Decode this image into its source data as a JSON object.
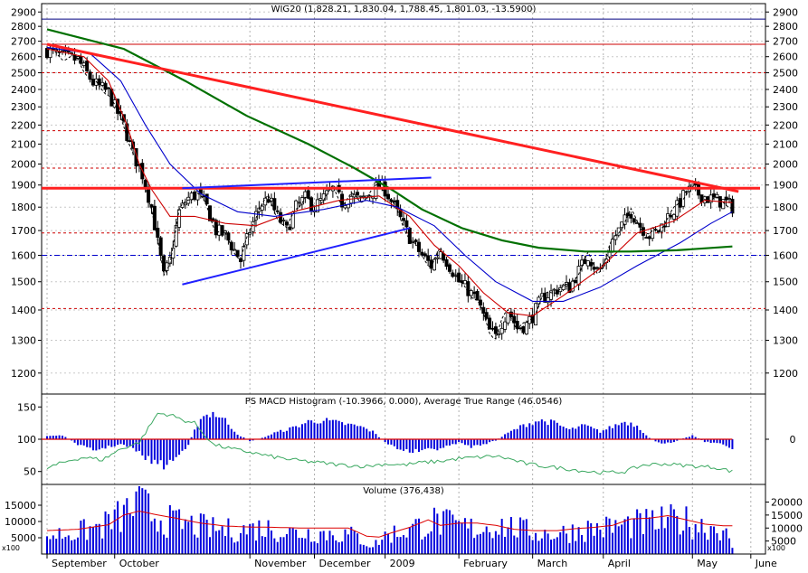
{
  "chart_data": [
    {
      "type": "candlestick",
      "title": "WIG20 (1,828.21, 1,830.04, 1,788.45, 1,801.03, -13.5900)",
      "y_ticks": [
        1200,
        1300,
        1400,
        1500,
        1600,
        1700,
        1800,
        1900,
        2000,
        2100,
        2200,
        2300,
        2400,
        2500,
        2600,
        2700,
        2800,
        2900
      ],
      "y_scale": "log",
      "ylim": [
        1140,
        2960
      ],
      "x_months": [
        "September",
        "October",
        "November",
        "December",
        "2009",
        "February",
        "March",
        "April",
        "May",
        "June"
      ],
      "month_starts_day": [
        0,
        22,
        66,
        87,
        110,
        134,
        158,
        181,
        210,
        229
      ],
      "total_days": 232,
      "close_path": [
        [
          0,
          2640
        ],
        [
          5,
          2600
        ],
        [
          10,
          2580
        ],
        [
          15,
          2440
        ],
        [
          20,
          2380
        ],
        [
          22,
          2300
        ],
        [
          25,
          2200
        ],
        [
          28,
          2050
        ],
        [
          31,
          1950
        ],
        [
          34,
          1800
        ],
        [
          36,
          1650
        ],
        [
          38,
          1520
        ],
        [
          40,
          1580
        ],
        [
          43,
          1780
        ],
        [
          46,
          1840
        ],
        [
          49,
          1860
        ],
        [
          52,
          1800
        ],
        [
          55,
          1700
        ],
        [
          58,
          1680
        ],
        [
          60,
          1640
        ],
        [
          63,
          1580
        ],
        [
          66,
          1700
        ],
        [
          69,
          1800
        ],
        [
          72,
          1840
        ],
        [
          75,
          1760
        ],
        [
          78,
          1700
        ],
        [
          81,
          1800
        ],
        [
          84,
          1840
        ],
        [
          87,
          1800
        ],
        [
          90,
          1840
        ],
        [
          93,
          1880
        ],
        [
          96,
          1820
        ],
        [
          99,
          1850
        ],
        [
          102,
          1830
        ],
        [
          105,
          1860
        ],
        [
          108,
          1900
        ],
        [
          110,
          1880
        ],
        [
          113,
          1800
        ],
        [
          116,
          1720
        ],
        [
          119,
          1650
        ],
        [
          122,
          1600
        ],
        [
          125,
          1560
        ],
        [
          128,
          1620
        ],
        [
          131,
          1560
        ],
        [
          134,
          1500
        ],
        [
          137,
          1470
        ],
        [
          140,
          1430
        ],
        [
          142,
          1380
        ],
        [
          144,
          1330
        ],
        [
          146,
          1310
        ],
        [
          148,
          1360
        ],
        [
          150,
          1400
        ],
        [
          153,
          1340
        ],
        [
          156,
          1350
        ],
        [
          158,
          1380
        ],
        [
          161,
          1440
        ],
        [
          164,
          1460
        ],
        [
          167,
          1480
        ],
        [
          170,
          1480
        ],
        [
          173,
          1540
        ],
        [
          176,
          1600
        ],
        [
          179,
          1540
        ],
        [
          181,
          1560
        ],
        [
          184,
          1660
        ],
        [
          187,
          1720
        ],
        [
          190,
          1780
        ],
        [
          193,
          1720
        ],
        [
          196,
          1680
        ],
        [
          199,
          1700
        ],
        [
          202,
          1760
        ],
        [
          205,
          1800
        ],
        [
          208,
          1870
        ],
        [
          210,
          1880
        ],
        [
          212,
          1860
        ],
        [
          215,
          1840
        ],
        [
          218,
          1830
        ],
        [
          221,
          1820
        ],
        [
          223,
          1801
        ]
      ],
      "candle_seed": 7,
      "series": [
        {
          "name": "",
          "color": "#cc0000",
          "points": [
            [
              0,
              2650
            ],
            [
              12,
              2600
            ],
            [
              20,
              2450
            ],
            [
              26,
              2200
            ],
            [
              30,
              2000
            ],
            [
              34,
              1880
            ],
            [
              40,
              1760
            ],
            [
              48,
              1760
            ],
            [
              58,
              1730
            ],
            [
              68,
              1720
            ],
            [
              80,
              1780
            ],
            [
              95,
              1830
            ],
            [
              108,
              1850
            ],
            [
              118,
              1760
            ],
            [
              126,
              1640
            ],
            [
              134,
              1560
            ],
            [
              142,
              1460
            ],
            [
              150,
              1390
            ],
            [
              158,
              1380
            ],
            [
              168,
              1450
            ],
            [
              180,
              1550
            ],
            [
              192,
              1690
            ],
            [
              204,
              1740
            ],
            [
              214,
              1830
            ],
            [
              223,
              1820
            ]
          ]
        },
        {
          "name": "",
          "color": "#0000cc",
          "points": [
            [
              0,
              2660
            ],
            [
              14,
              2620
            ],
            [
              24,
              2450
            ],
            [
              32,
              2200
            ],
            [
              40,
              2000
            ],
            [
              50,
              1860
            ],
            [
              62,
              1780
            ],
            [
              74,
              1760
            ],
            [
              90,
              1790
            ],
            [
              104,
              1830
            ],
            [
              114,
              1800
            ],
            [
              126,
              1720
            ],
            [
              136,
              1600
            ],
            [
              146,
              1500
            ],
            [
              158,
              1430
            ],
            [
              168,
              1430
            ],
            [
              180,
              1480
            ],
            [
              192,
              1560
            ],
            [
              206,
              1650
            ],
            [
              216,
              1730
            ],
            [
              223,
              1780
            ]
          ]
        },
        {
          "name": "",
          "color": "#007000",
          "points": [
            [
              0,
              2780
            ],
            [
              25,
              2650
            ],
            [
              45,
              2450
            ],
            [
              65,
              2250
            ],
            [
              85,
              2100
            ],
            [
              100,
              1980
            ],
            [
              112,
              1880
            ],
            [
              122,
              1790
            ],
            [
              135,
              1710
            ],
            [
              148,
              1660
            ],
            [
              160,
              1630
            ],
            [
              175,
              1615
            ],
            [
              190,
              1615
            ],
            [
              205,
              1620
            ],
            [
              223,
              1635
            ]
          ]
        }
      ],
      "lines": [
        {
          "color": "#ff2020",
          "width": 3,
          "points": [
            [
              0,
              2680
            ],
            [
              225,
              1870
            ]
          ]
        },
        {
          "color": "#ff2020",
          "width": 3,
          "points": [
            [
              -10,
              1885
            ],
            [
              232,
              1885
            ]
          ]
        },
        {
          "color": "#2020ff",
          "width": 2,
          "points": [
            [
              44,
              1885
            ],
            [
              125,
              1935
            ]
          ]
        },
        {
          "color": "#2020ff",
          "width": 2,
          "points": [
            [
              44,
              1490
            ],
            [
              118,
              1710
            ]
          ]
        }
      ],
      "h_lines": [
        {
          "y": 2850,
          "color": "#000080",
          "dash": ""
        },
        {
          "y": 2680,
          "color": "#cc0000",
          "dash": ""
        },
        {
          "y": 2500,
          "color": "#cc0000",
          "dash": "3,3"
        },
        {
          "y": 2170,
          "color": "#cc0000",
          "dash": "3,3"
        },
        {
          "y": 1980,
          "color": "#cc0000",
          "dash": "3,3"
        },
        {
          "y": 1690,
          "color": "#cc0000",
          "dash": "3,3"
        },
        {
          "y": 1600,
          "color": "#0000cc",
          "dash": "6,3,2,3"
        },
        {
          "y": 1405,
          "color": "#cc0000",
          "dash": "3,3"
        }
      ]
    },
    {
      "type": "histogram",
      "title": "PS MACD Histogram (-10.3966, 0.000), Average True Range (46.0546)",
      "y_ticks_left": [
        50,
        100,
        150
      ],
      "y_ticks_right": [
        0
      ],
      "ylim": [
        30,
        170
      ],
      "baseline": 100,
      "hist_amplitude": [
        [
          0,
          5
        ],
        [
          5,
          6
        ],
        [
          10,
          -8
        ],
        [
          15,
          -18
        ],
        [
          20,
          -12
        ],
        [
          24,
          -8
        ],
        [
          28,
          -15
        ],
        [
          33,
          -32
        ],
        [
          38,
          -42
        ],
        [
          42,
          -30
        ],
        [
          46,
          -8
        ],
        [
          50,
          35
        ],
        [
          54,
          42
        ],
        [
          58,
          30
        ],
        [
          62,
          8
        ],
        [
          66,
          -3
        ],
        [
          70,
          2
        ],
        [
          74,
          10
        ],
        [
          80,
          18
        ],
        [
          85,
          28
        ],
        [
          90,
          30
        ],
        [
          96,
          25
        ],
        [
          102,
          20
        ],
        [
          106,
          12
        ],
        [
          110,
          -5
        ],
        [
          114,
          -14
        ],
        [
          118,
          -20
        ],
        [
          122,
          -18
        ],
        [
          126,
          -16
        ],
        [
          130,
          -12
        ],
        [
          134,
          -5
        ],
        [
          138,
          -12
        ],
        [
          142,
          -8
        ],
        [
          146,
          -2
        ],
        [
          150,
          10
        ],
        [
          155,
          22
        ],
        [
          160,
          30
        ],
        [
          165,
          26
        ],
        [
          170,
          15
        ],
        [
          175,
          22
        ],
        [
          180,
          12
        ],
        [
          184,
          20
        ],
        [
          188,
          28
        ],
        [
          192,
          22
        ],
        [
          196,
          2
        ],
        [
          200,
          -8
        ],
        [
          204,
          -4
        ],
        [
          210,
          6
        ],
        [
          214,
          -4
        ],
        [
          218,
          -6
        ],
        [
          223,
          -14
        ]
      ],
      "atr_line": [
        [
          0,
          55
        ],
        [
          4,
          62
        ],
        [
          8,
          68
        ],
        [
          12,
          72
        ],
        [
          18,
          68
        ],
        [
          24,
          85
        ],
        [
          30,
          95
        ],
        [
          36,
          140
        ],
        [
          40,
          138
        ],
        [
          44,
          130
        ],
        [
          48,
          125
        ],
        [
          54,
          92
        ],
        [
          60,
          85
        ],
        [
          66,
          80
        ],
        [
          72,
          74
        ],
        [
          80,
          68
        ],
        [
          88,
          64
        ],
        [
          96,
          60
        ],
        [
          104,
          58
        ],
        [
          110,
          62
        ],
        [
          116,
          60
        ],
        [
          122,
          64
        ],
        [
          128,
          66
        ],
        [
          134,
          70
        ],
        [
          140,
          72
        ],
        [
          146,
          74
        ],
        [
          150,
          70
        ],
        [
          156,
          62
        ],
        [
          162,
          58
        ],
        [
          168,
          55
        ],
        [
          176,
          50
        ],
        [
          182,
          48
        ],
        [
          188,
          50
        ],
        [
          194,
          60
        ],
        [
          200,
          62
        ],
        [
          206,
          60
        ],
        [
          212,
          58
        ],
        [
          218,
          56
        ],
        [
          223,
          50
        ]
      ],
      "hist_color": "#0000dd",
      "atr_color": "#3aa860"
    },
    {
      "type": "volume",
      "title": "Volume (376,438)",
      "y_ticks_left": [
        5000,
        10000,
        15000
      ],
      "y_ticks_right": [
        5000,
        10000,
        15000,
        20000
      ],
      "left_multiplier_label": "x100",
      "right_multiplier_label": "x100",
      "ylim": [
        0,
        17500
      ],
      "volume_profile": [
        [
          0,
          6000
        ],
        [
          10,
          7000
        ],
        [
          18,
          9000
        ],
        [
          22,
          11000
        ],
        [
          26,
          13500
        ],
        [
          30,
          16500
        ],
        [
          34,
          13000
        ],
        [
          40,
          10500
        ],
        [
          46,
          9500
        ],
        [
          54,
          8000
        ],
        [
          62,
          7500
        ],
        [
          70,
          8500
        ],
        [
          80,
          7000
        ],
        [
          90,
          6800
        ],
        [
          100,
          6000
        ],
        [
          106,
          2500
        ],
        [
          110,
          6000
        ],
        [
          118,
          8000
        ],
        [
          126,
          10500
        ],
        [
          134,
          9000
        ],
        [
          140,
          8000
        ],
        [
          146,
          9500
        ],
        [
          152,
          8500
        ],
        [
          158,
          7000
        ],
        [
          166,
          6500
        ],
        [
          174,
          8000
        ],
        [
          182,
          8500
        ],
        [
          190,
          9500
        ],
        [
          198,
          10000
        ],
        [
          206,
          11000
        ],
        [
          214,
          9000
        ],
        [
          220,
          8500
        ],
        [
          223,
          1500
        ]
      ],
      "avg_line": [
        [
          0,
          7200
        ],
        [
          10,
          7600
        ],
        [
          20,
          9000
        ],
        [
          25,
          12000
        ],
        [
          30,
          13200
        ],
        [
          36,
          12000
        ],
        [
          42,
          11000
        ],
        [
          50,
          9500
        ],
        [
          58,
          8600
        ],
        [
          66,
          8300
        ],
        [
          74,
          8200
        ],
        [
          82,
          8000
        ],
        [
          90,
          8000
        ],
        [
          98,
          8000
        ],
        [
          104,
          5500
        ],
        [
          108,
          5200
        ],
        [
          112,
          6500
        ],
        [
          118,
          8200
        ],
        [
          124,
          10500
        ],
        [
          128,
          8800
        ],
        [
          134,
          9500
        ],
        [
          140,
          9500
        ],
        [
          146,
          8800
        ],
        [
          152,
          7600
        ],
        [
          158,
          7200
        ],
        [
          166,
          7200
        ],
        [
          172,
          7800
        ],
        [
          178,
          8200
        ],
        [
          184,
          8800
        ],
        [
          190,
          10800
        ],
        [
          196,
          11000
        ],
        [
          202,
          11800
        ],
        [
          208,
          10500
        ],
        [
          214,
          9200
        ],
        [
          220,
          8700
        ],
        [
          223,
          8700
        ]
      ],
      "bar_color": "#0000dd",
      "avg_color": "#dd0000"
    }
  ]
}
